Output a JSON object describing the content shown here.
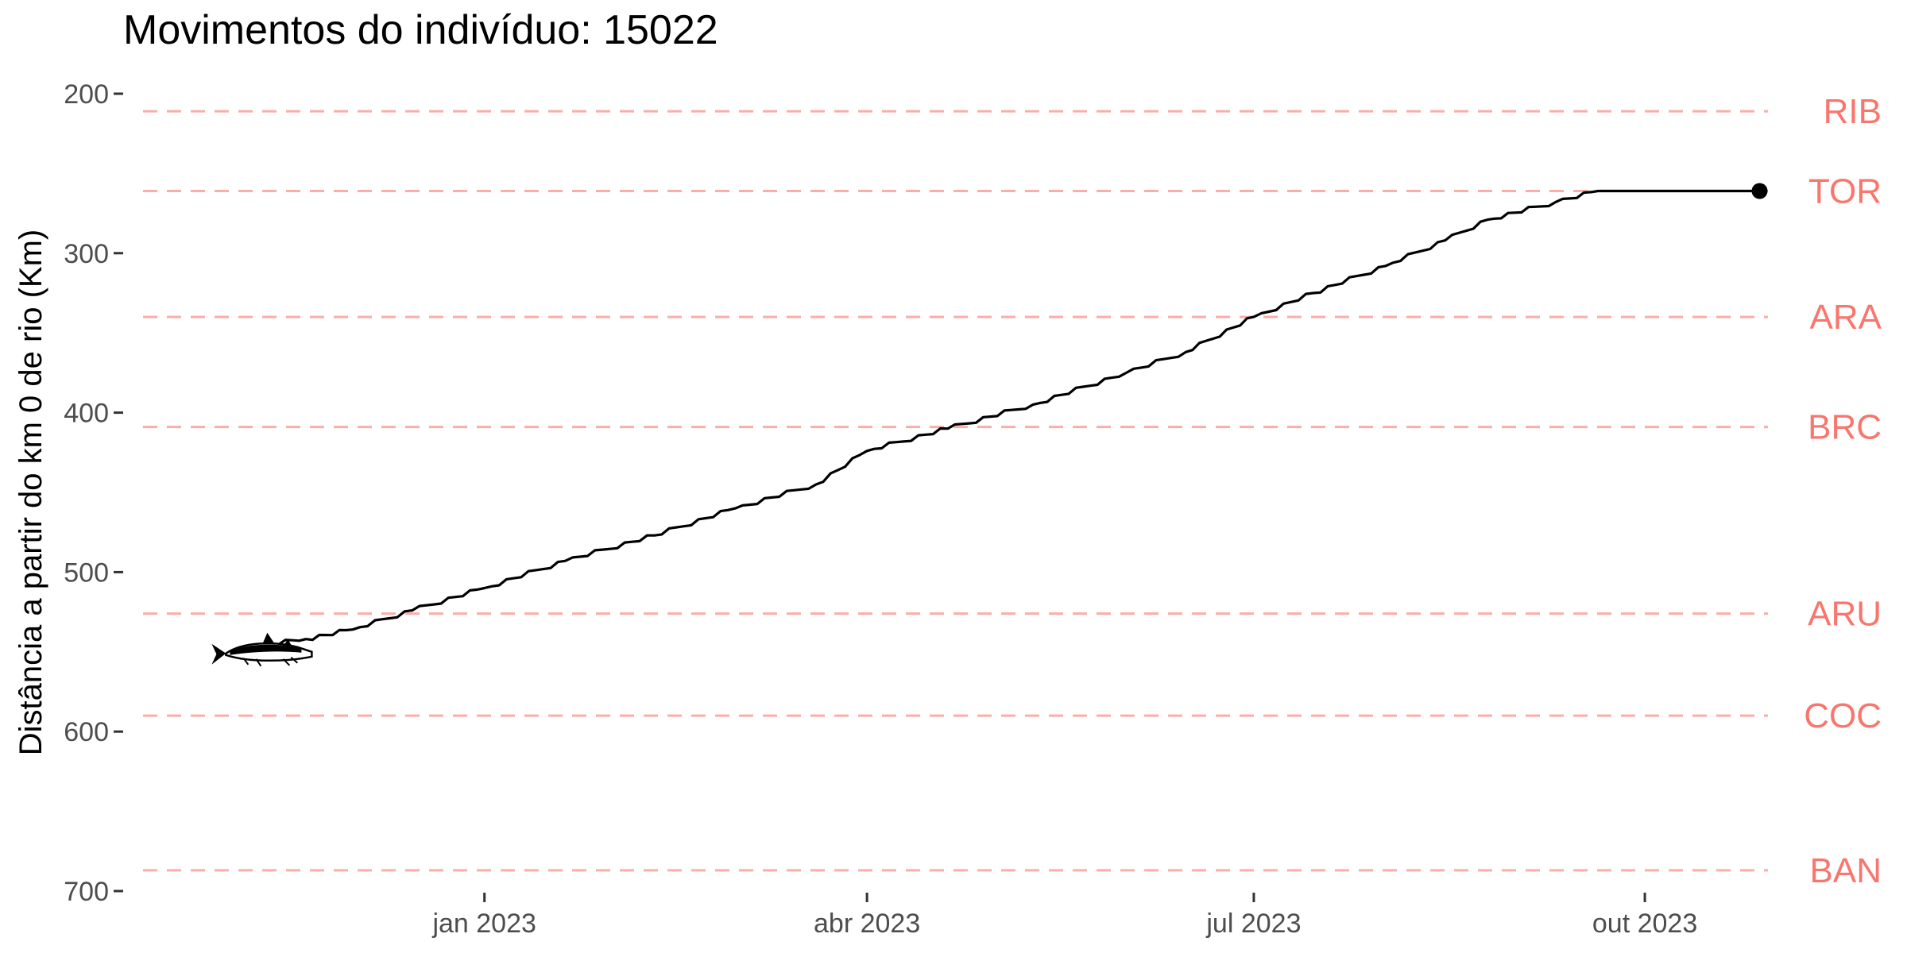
{
  "title": "Movimentos do indivíduo: 15022",
  "chart_data": {
    "type": "line",
    "title": "Movimentos do indivíduo: 15022",
    "xlabel": "",
    "ylabel": "Distância a partir do km 0 de rio (Km)",
    "y_reversed": true,
    "ylim": [
      200,
      700
    ],
    "yticks": [
      200,
      300,
      400,
      500,
      600,
      700
    ],
    "xlim": [
      "2022-10-08",
      "2023-11-27"
    ],
    "xticks": [
      {
        "date": "2023-01-01",
        "label": "jan 2023"
      },
      {
        "date": "2023-04-01",
        "label": "abr 2023"
      },
      {
        "date": "2023-07-01",
        "label": "jul 2023"
      },
      {
        "date": "2023-10-01",
        "label": "out 2023"
      }
    ],
    "grid": false,
    "line_color": "#000000",
    "reference_color": "#F8766D",
    "reference_lines": [
      {
        "label": "RIB",
        "y": 211
      },
      {
        "label": "TOR",
        "y": 261
      },
      {
        "label": "ARA",
        "y": 340
      },
      {
        "label": "BRC",
        "y": 409
      },
      {
        "label": "ARU",
        "y": 526
      },
      {
        "label": "COC",
        "y": 590
      },
      {
        "label": "BAN",
        "y": 687
      }
    ],
    "series": [
      {
        "points": [
          {
            "x": "2022-11-04",
            "y": 548
          },
          {
            "x": "2022-11-20",
            "y": 542
          },
          {
            "x": "2022-12-01",
            "y": 536
          },
          {
            "x": "2022-12-15",
            "y": 524
          },
          {
            "x": "2023-01-01",
            "y": 510
          },
          {
            "x": "2023-01-20",
            "y": 493
          },
          {
            "x": "2023-02-10",
            "y": 477
          },
          {
            "x": "2023-03-01",
            "y": 460
          },
          {
            "x": "2023-03-20",
            "y": 445
          },
          {
            "x": "2023-04-01",
            "y": 424
          },
          {
            "x": "2023-04-20",
            "y": 410
          },
          {
            "x": "2023-05-10",
            "y": 395
          },
          {
            "x": "2023-06-01",
            "y": 375
          },
          {
            "x": "2023-06-15",
            "y": 362
          },
          {
            "x": "2023-07-01",
            "y": 340
          },
          {
            "x": "2023-07-15",
            "y": 325
          },
          {
            "x": "2023-08-01",
            "y": 308
          },
          {
            "x": "2023-08-15",
            "y": 292
          },
          {
            "x": "2023-08-25",
            "y": 279
          },
          {
            "x": "2023-09-10",
            "y": 268
          },
          {
            "x": "2023-09-20",
            "y": 261
          },
          {
            "x": "2023-10-28",
            "y": 261
          }
        ]
      }
    ],
    "start_marker": {
      "x": "2022-11-04",
      "y": 551,
      "icon": "fish-icon"
    },
    "end_marker": {
      "x": "2023-10-28",
      "y": 261
    }
  }
}
